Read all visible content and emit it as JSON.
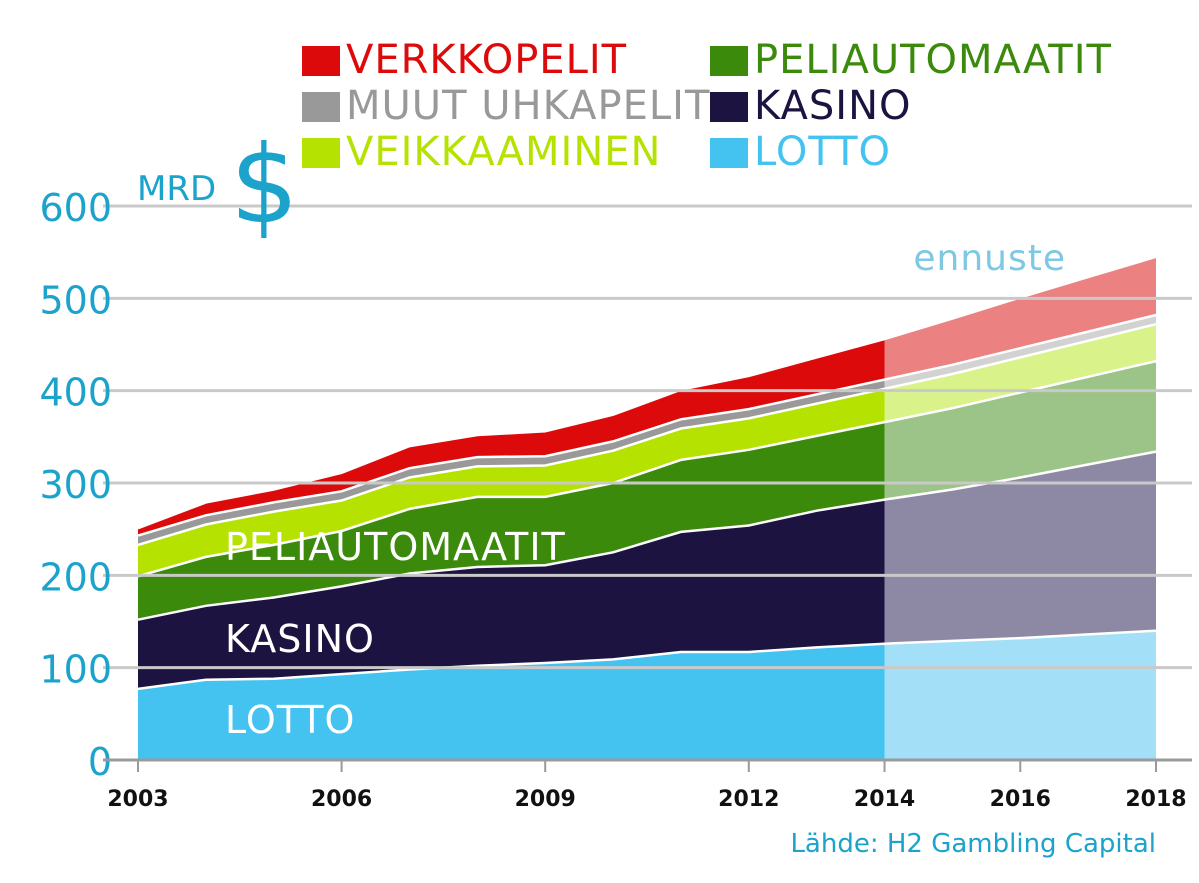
{
  "chart_data": {
    "type": "area",
    "unit_label": "MRD",
    "unit_symbol": "$",
    "forecast_label": "ennuste",
    "source": "Lähde: H2 Gambling Capital",
    "x": [
      2003,
      2004,
      2005,
      2006,
      2007,
      2008,
      2009,
      2010,
      2011,
      2012,
      2013,
      2014,
      2015,
      2016,
      2017,
      2018
    ],
    "x_ticks": [
      "2003",
      "2006",
      "2009",
      "2012",
      "2014",
      "2016",
      "2018"
    ],
    "y_ticks": [
      "0",
      "100",
      "200",
      "300",
      "400",
      "500",
      "600"
    ],
    "ylim": [
      0,
      600
    ],
    "forecast_from": 2014,
    "grid": true,
    "legend_position": "top",
    "series": [
      {
        "name": "LOTTO",
        "color": "#44c3f1",
        "forecast_color": "#a3e0f8",
        "values": [
          77,
          87,
          88,
          93,
          98,
          102,
          105,
          109,
          117,
          117,
          122,
          126,
          129,
          132,
          136,
          140
        ]
      },
      {
        "name": "KASINO",
        "color": "#1c1340",
        "forecast_color": "#8d89a4",
        "values": [
          75,
          80,
          88,
          95,
          104,
          107,
          106,
          116,
          130,
          137,
          148,
          156,
          164,
          174,
          184,
          194
        ]
      },
      {
        "name": "PELIAUTOMAATIT",
        "color": "#3b8a0c",
        "forecast_color": "#9dc488",
        "values": [
          47,
          53,
          57,
          60,
          70,
          76,
          74,
          75,
          78,
          82,
          81,
          84,
          88,
          92,
          95,
          98
        ]
      },
      {
        "name": "VEIKKAAMINEN",
        "color": "#b5e200",
        "forecast_color": "#d9f38a",
        "values": [
          34,
          35,
          36,
          33,
          34,
          33,
          34,
          35,
          34,
          34,
          35,
          36,
          37,
          38,
          39,
          40
        ]
      },
      {
        "name": "MUUT UHKAPELIT",
        "color": "#999999",
        "forecast_color": "#d2d2d2",
        "values": [
          10,
          10,
          10,
          10,
          10,
          10,
          10,
          10,
          10,
          10,
          10,
          10,
          10,
          10,
          10,
          10
        ]
      },
      {
        "name": "VERKKOPELIT",
        "color": "#dd0a0b",
        "forecast_color": "#eb8181",
        "values": [
          8,
          14,
          14,
          20,
          24,
          24,
          27,
          29,
          32,
          36,
          40,
          44,
          50,
          55,
          59,
          63
        ]
      }
    ],
    "area_labels": [
      "PELIAUTOMAATIT",
      "KASINO",
      "LOTTO"
    ]
  },
  "legend": [
    {
      "label": "VERKKOPELIT",
      "color": "#dd0a0b"
    },
    {
      "label": "PELIAUTOMAATIT",
      "color": "#3b8a0c"
    },
    {
      "label": "MUUT UHKAPELIT",
      "color": "#999999"
    },
    {
      "label": "KASINO",
      "color": "#1c1340"
    },
    {
      "label": "VEIKKAAMINEN",
      "color": "#b5e200"
    },
    {
      "label": "LOTTO",
      "color": "#44c3f1"
    }
  ],
  "colors": {
    "axis_text": "#1ba3cc",
    "grid": "#c9c9c9",
    "axis": "#9a9a9a"
  }
}
